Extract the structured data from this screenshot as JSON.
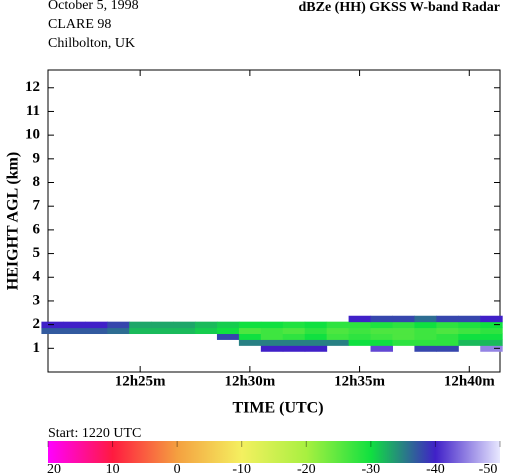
{
  "chart_data": {
    "type": "heatmap",
    "title": "dBZe (HH)  GKSS  W-band Radar",
    "date": "October  5, 1998",
    "campaign": "CLARE 98",
    "site": "Chilbolton, UK",
    "xlabel": "TIME (UTC)",
    "ylabel": "HEIGHT AGL (km)",
    "start_note": "Start:  1220 UTC",
    "xlim": [
      20.8,
      41.4
    ],
    "ylim": [
      0,
      12.75
    ],
    "xticks": [
      {
        "value": 25,
        "label": "12h25m"
      },
      {
        "value": 30,
        "label": "12h30m"
      },
      {
        "value": 35,
        "label": "12h35m"
      },
      {
        "value": 40,
        "label": "12h40m"
      }
    ],
    "yticks": [
      1,
      2,
      3,
      4,
      5,
      6,
      7,
      8,
      9,
      10,
      11,
      12
    ],
    "x": [
      21,
      22,
      23,
      24,
      25,
      26,
      27,
      28,
      29,
      30,
      31,
      32,
      33,
      34,
      35,
      36,
      37,
      38,
      39,
      40,
      41
    ],
    "y": [
      1.0,
      1.25,
      1.5,
      1.75,
      2.0,
      2.25
    ],
    "z": [
      [
        null,
        null,
        null,
        null,
        null,
        null,
        null,
        null,
        null,
        null,
        -40,
        -40,
        -40,
        null,
        null,
        -42,
        null,
        -38,
        -38,
        null,
        -45
      ],
      [
        null,
        null,
        null,
        null,
        null,
        null,
        null,
        null,
        null,
        -35,
        -35,
        -35,
        -35,
        -35,
        -30,
        -30,
        -28,
        -28,
        -28,
        -32,
        -32
      ],
      [
        null,
        null,
        null,
        null,
        null,
        null,
        null,
        null,
        -38,
        -30,
        -27,
        -28,
        -30,
        -27,
        -28,
        -27,
        -26,
        -27,
        -28,
        -30,
        -30
      ],
      [
        -37,
        -37,
        -37,
        -36,
        -32,
        -32,
        -32,
        -31,
        -30,
        -26,
        -27,
        -26,
        -28,
        -26,
        -27,
        -26,
        -26,
        -27,
        -26,
        -27,
        -28
      ],
      [
        -40,
        -40,
        -40,
        -38,
        -33,
        -33,
        -33,
        -32,
        -31,
        -30,
        -30,
        -29,
        -30,
        -28,
        -28,
        -29,
        -28,
        -30,
        -28,
        -29,
        -30
      ],
      [
        null,
        null,
        null,
        null,
        null,
        null,
        null,
        null,
        null,
        null,
        null,
        null,
        null,
        null,
        -40,
        -38,
        -38,
        -36,
        -38,
        -38,
        -40
      ]
    ],
    "zlim": [
      20,
      -50
    ],
    "cticks": [
      20,
      10,
      0,
      -10,
      -20,
      -30,
      -40,
      -50
    ],
    "colorscale": [
      "#ff00ff",
      "#ff1a40",
      "#f4a040",
      "#f4f060",
      "#a8f040",
      "#10e040",
      "#4020c8",
      "#e8e8ff"
    ]
  }
}
